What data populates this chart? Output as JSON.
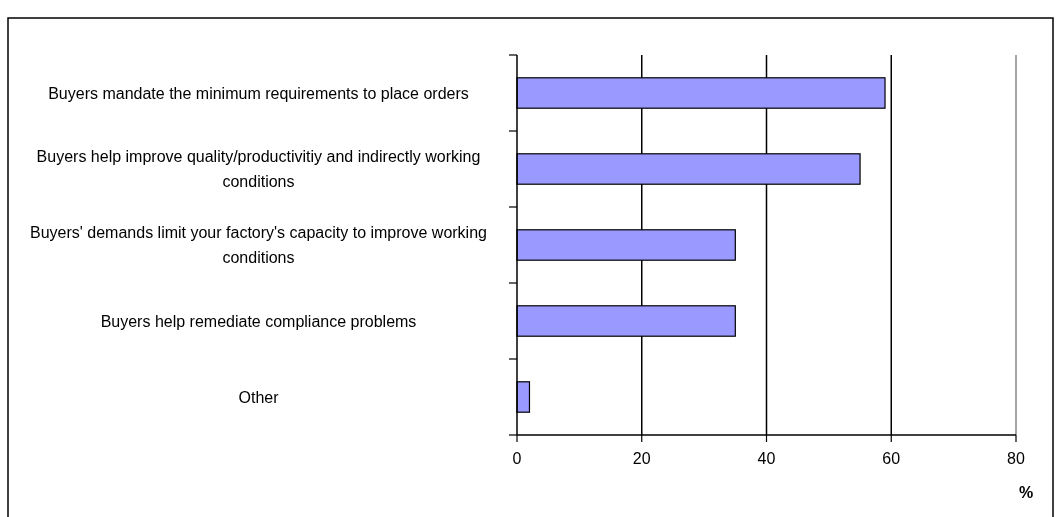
{
  "chart_data": {
    "type": "bar",
    "orientation": "horizontal",
    "categories": [
      "Buyers mandate the minimum requirements to place orders",
      "Buyers help improve quality/productivitiy and indirectly working conditions",
      "Buyers' demands limit your factory's capacity to improve working conditions",
      "Buyers help remediate compliance problems",
      "Other"
    ],
    "values": [
      59,
      55,
      35,
      35,
      2
    ],
    "color": "#9999ff",
    "xlim": [
      0,
      80
    ],
    "xticks": [
      0,
      20,
      40,
      60,
      80
    ],
    "xlabel": "%",
    "grid": "x"
  }
}
